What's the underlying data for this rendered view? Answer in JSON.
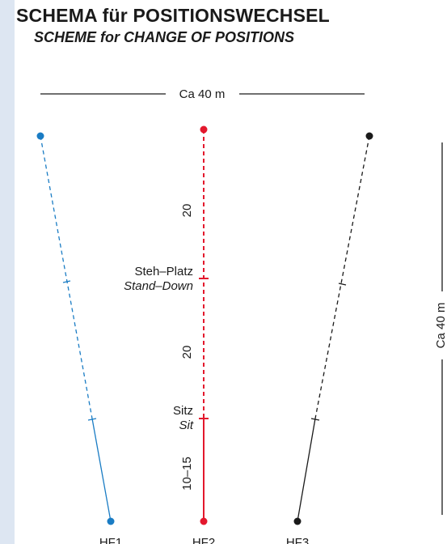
{
  "title": "SCHEMA für POSITIONSWECHSEL",
  "subtitle": "SCHEME for CHANGE OF POSITIONS",
  "width_label": "Ca 40 m",
  "length_label": "Ca 40 m",
  "segments": {
    "upper": "20",
    "middle": "20",
    "lower": "10–15"
  },
  "positions": {
    "stand_de": "Steh–Platz",
    "stand_en": "Stand–Down",
    "sit_de": "Sitz",
    "sit_en": "Sit"
  },
  "handlers": [
    "HF1",
    "HF2",
    "HF3"
  ],
  "colors": {
    "hf1": "#1a7cc4",
    "hf2": "#e3182d",
    "hf3": "#1a1a1a"
  }
}
